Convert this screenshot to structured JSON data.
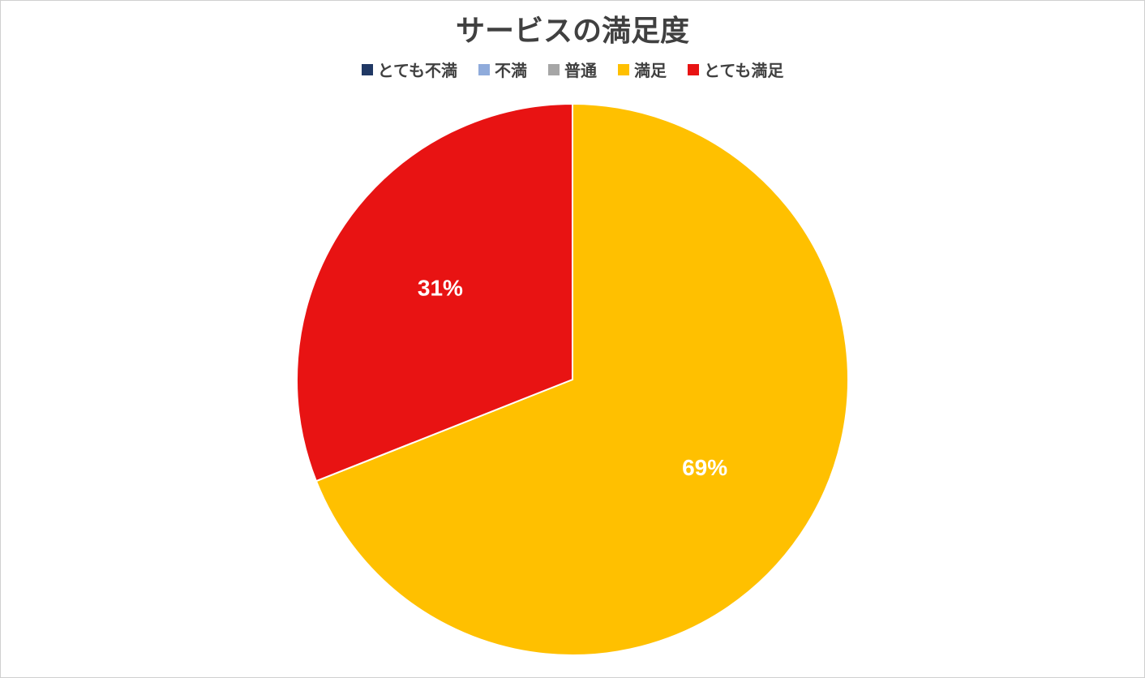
{
  "chart": {
    "type": "pie",
    "title": "サービスの満足度",
    "title_fontsize": 36,
    "title_color": "#404040",
    "background_color": "#ffffff",
    "legend_fontsize": 20,
    "legend_text_color": "#404040",
    "legend_position": "top",
    "pie_radius": 340,
    "pie_stroke_color": "#ffffff",
    "pie_stroke_width": 2,
    "data_label_fontsize": 28,
    "data_label_color": "#ffffff",
    "categories": [
      {
        "label": "とても不満",
        "value": 0,
        "color": "#203864",
        "display_label": ""
      },
      {
        "label": "不満",
        "value": 0,
        "color": "#8fabdb",
        "display_label": ""
      },
      {
        "label": "普通",
        "value": 0,
        "color": "#a6a6a6",
        "display_label": ""
      },
      {
        "label": "満足",
        "value": 69,
        "color": "#ffc000",
        "display_label": "69%"
      },
      {
        "label": "とても満足",
        "value": 31,
        "color": "#e81313",
        "display_label": "31%"
      }
    ]
  }
}
